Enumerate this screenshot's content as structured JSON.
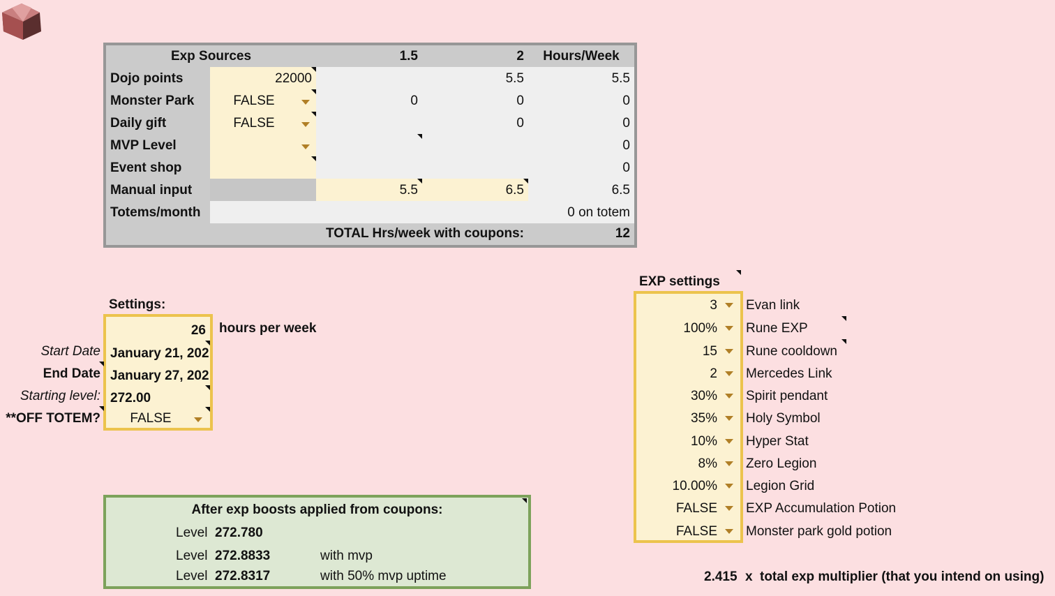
{
  "logo": {
    "icon": "hexagon-logo-icon"
  },
  "exp_sources": {
    "headers": {
      "title": "Exp Sources",
      "col_a": "1.5",
      "col_b": "2",
      "col_c": "Hours/Week"
    },
    "rows": [
      {
        "label": "Dojo points",
        "input": "22000",
        "a": "",
        "b": "5.5",
        "c": "5.5"
      },
      {
        "label": "Monster Park",
        "input": "FALSE",
        "a": "0",
        "b": "0",
        "c": "0"
      },
      {
        "label": "Daily gift",
        "input": "FALSE",
        "a": "",
        "b": "0",
        "c": "0"
      },
      {
        "label": "MVP Level",
        "input": "",
        "a": "",
        "b": "",
        "c": "0"
      },
      {
        "label": "Event shop",
        "input": "",
        "a": "",
        "b": "",
        "c": "0"
      },
      {
        "label": "Manual input",
        "input": "",
        "a": "5.5",
        "b": "6.5",
        "c": "6.5"
      },
      {
        "label": "Totems/month",
        "input": "",
        "a": "",
        "b": "",
        "c": "0 on totem"
      }
    ],
    "total_label": "TOTAL Hrs/week with coupons:",
    "total_value": "12"
  },
  "settings": {
    "title": "Settings:",
    "hours_value": "26",
    "hours_label": "hours per week",
    "start_label": "Start Date",
    "start_value": "January 21, 202",
    "end_label": "End Date",
    "end_value": "January 27, 202",
    "level_label": "Starting level:",
    "level_value": "272.00",
    "off_totem_label": "**OFF TOTEM?",
    "off_totem_value": "FALSE"
  },
  "results": {
    "title": "After exp boosts applied from coupons:",
    "rows": [
      {
        "label": "Level",
        "value": "272.780",
        "note": ""
      },
      {
        "label": "Level",
        "value": "272.8833",
        "note": "with mvp"
      },
      {
        "label": "Level",
        "value": "272.8317",
        "note": "with 50% mvp uptime"
      }
    ]
  },
  "exp_settings": {
    "title": "EXP settings",
    "items": [
      {
        "value": "3",
        "label": "Evan link"
      },
      {
        "value": "100%",
        "label": "Rune EXP"
      },
      {
        "value": "15",
        "label": "Rune cooldown"
      },
      {
        "value": "2",
        "label": "Mercedes Link"
      },
      {
        "value": "30%",
        "label": "Spirit pendant"
      },
      {
        "value": "35%",
        "label": "Holy Symbol"
      },
      {
        "value": "10%",
        "label": "Hyper Stat"
      },
      {
        "value": "8%",
        "label": "Zero Legion"
      },
      {
        "value": "10.00%",
        "label": "Legion Grid"
      },
      {
        "value": "FALSE",
        "label": "EXP Accumulation Potion"
      },
      {
        "value": "FALSE",
        "label": "Monster park gold potion"
      }
    ],
    "multiplier_value": "2.415",
    "multiplier_x": "x",
    "multiplier_label": "total exp multiplier (that you intend on using)"
  },
  "colors": {
    "background": "#fcdfe1",
    "input_fill": "#fcf2d2",
    "settings_border": "#ecc34d",
    "result_fill": "#dde8d3",
    "result_border": "#7da25b"
  }
}
